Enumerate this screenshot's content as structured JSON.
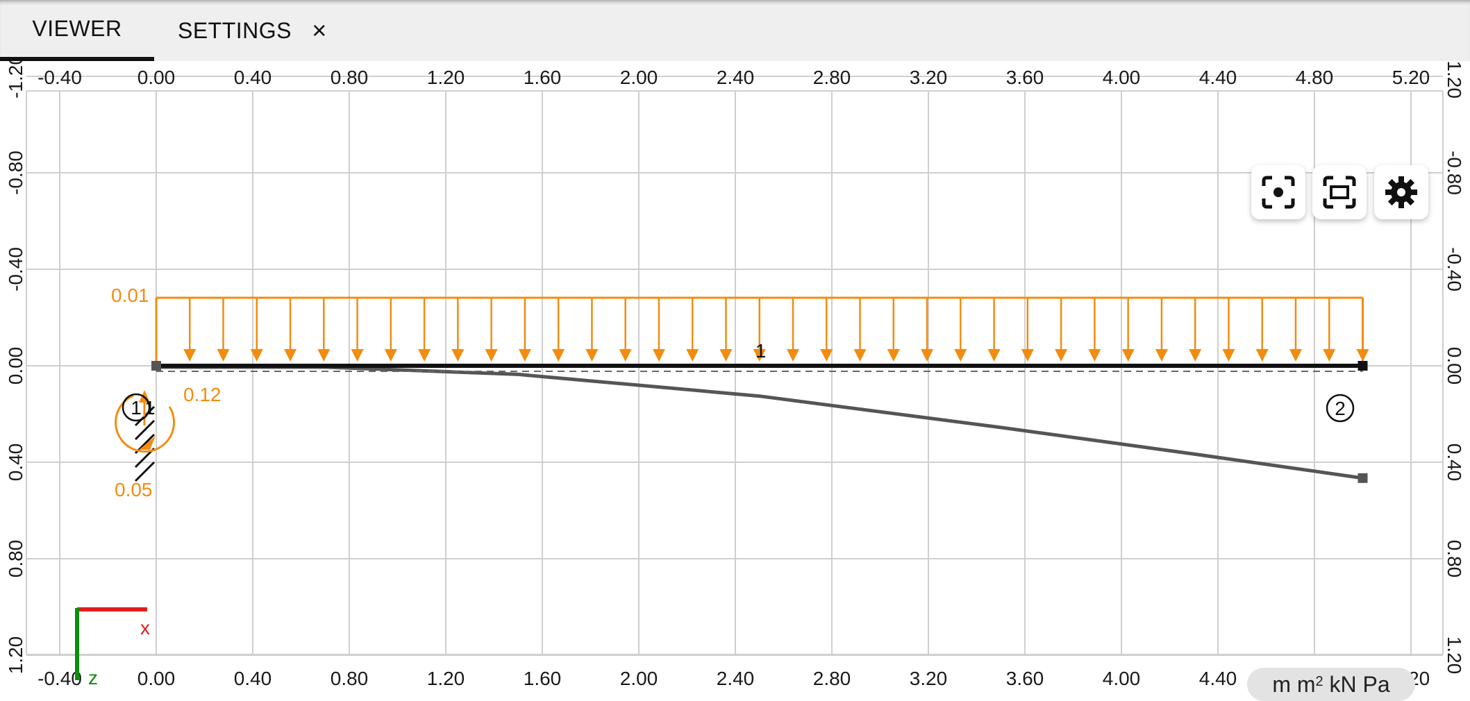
{
  "tabs": {
    "viewer": "VIEWER",
    "settings": "SETTINGS",
    "close_glyph": "×"
  },
  "axes": {
    "x_ticks": [
      "-0.40",
      "0.00",
      "0.40",
      "0.80",
      "1.20",
      "1.60",
      "2.00",
      "2.40",
      "2.80",
      "3.20",
      "3.60",
      "4.00",
      "4.40",
      "4.80",
      "5.20"
    ],
    "y_ticks_left": [
      "-1.20",
      "-0.80",
      "-0.40",
      "0.00",
      "0.40",
      "0.80",
      "1.20"
    ],
    "y_ticks_right": [
      "-1.20",
      "-0.80",
      "-0.40",
      "0.00",
      "0.40",
      "0.80",
      "1.20"
    ]
  },
  "model": {
    "distributed_load_label": "0.01",
    "reaction_vertical_label": "0.12",
    "reaction_moment_label": "0.05",
    "node_1_label": "1",
    "node_2_label": "2",
    "member_label": "1",
    "support_label": "1"
  },
  "coord_axes": {
    "x_label": "x",
    "z_label": "z",
    "x_color": "#e11d1d",
    "z_color": "#0a8f0a"
  },
  "toolbar": {
    "icons": [
      "focus-icon",
      "fit-view-icon",
      "gear-icon"
    ]
  },
  "units": {
    "text_before": "m m",
    "superscript": "2",
    "text_after": " kN Pa"
  },
  "colors": {
    "load": "#f28c0f",
    "beam": "#111111",
    "deflection": "#555555",
    "grid": "#cfcfcf"
  },
  "chart_data": {
    "type": "line",
    "x_range": [
      -0.4,
      5.2
    ],
    "y_range": [
      -1.2,
      1.2
    ],
    "beam": {
      "x": [
        0.0,
        5.0
      ],
      "z": [
        0.0,
        0.0
      ]
    },
    "deflected_shape": {
      "x": [
        0.0,
        0.7,
        1.5,
        2.5,
        3.5,
        4.3,
        5.0
      ],
      "z": [
        0.0,
        0.0,
        0.03,
        0.12,
        0.25,
        0.36,
        0.46
      ]
    },
    "distributed_load": {
      "x_start": 0.0,
      "x_end": 5.0,
      "value": "0.01"
    },
    "reactions": {
      "vertical": "0.12",
      "moment": "0.05"
    }
  }
}
